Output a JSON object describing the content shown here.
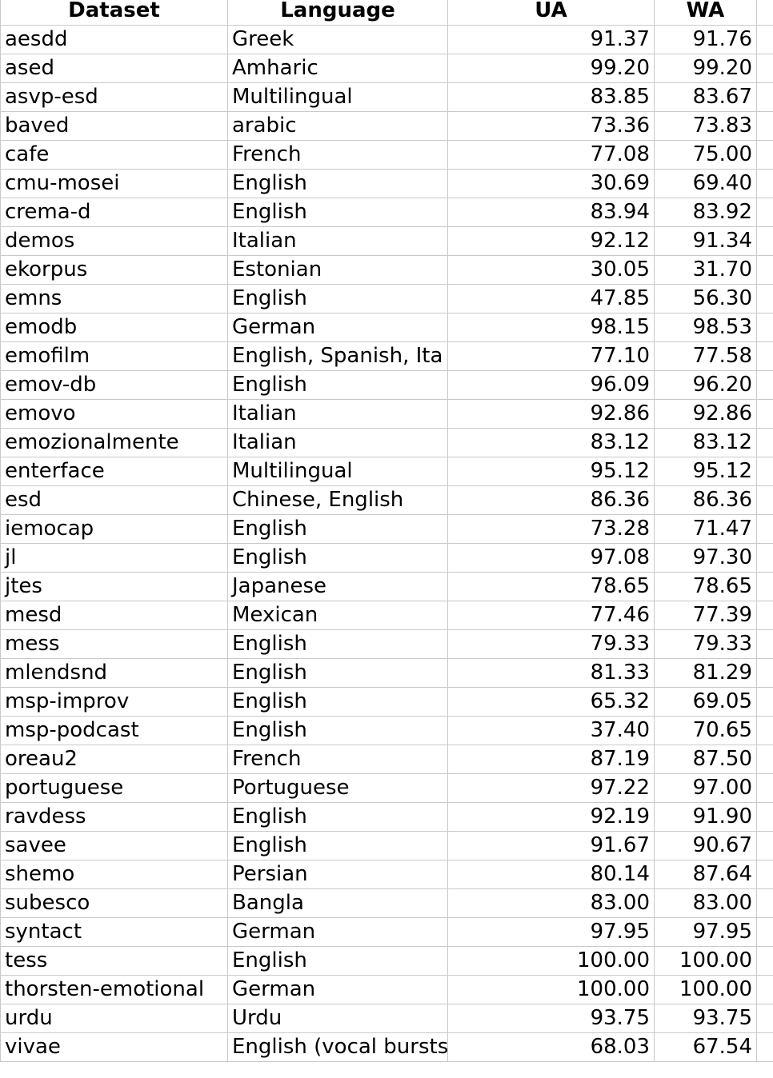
{
  "headers": {
    "dataset": "Dataset",
    "language": "Language",
    "ua": "UA",
    "wa": "WA"
  },
  "rows": [
    {
      "dataset": "aesdd",
      "language": "Greek",
      "ua": "91.37",
      "wa": "91.76"
    },
    {
      "dataset": "ased",
      "language": "Amharic",
      "ua": "99.20",
      "wa": "99.20"
    },
    {
      "dataset": "asvp-esd",
      "language": "Multilingual",
      "ua": "83.85",
      "wa": "83.67"
    },
    {
      "dataset": "baved",
      "language": "arabic",
      "ua": "73.36",
      "wa": "73.83"
    },
    {
      "dataset": "cafe",
      "language": "French",
      "ua": "77.08",
      "wa": "75.00"
    },
    {
      "dataset": "cmu-mosei",
      "language": "English",
      "ua": "30.69",
      "wa": "69.40"
    },
    {
      "dataset": "crema-d",
      "language": "English",
      "ua": "83.94",
      "wa": "83.92"
    },
    {
      "dataset": "demos",
      "language": "Italian",
      "ua": "92.12",
      "wa": "91.34"
    },
    {
      "dataset": "ekorpus",
      "language": "Estonian",
      "ua": "30.05",
      "wa": "31.70"
    },
    {
      "dataset": "emns",
      "language": "English",
      "ua": "47.85",
      "wa": "56.30"
    },
    {
      "dataset": "emodb",
      "language": "German",
      "ua": "98.15",
      "wa": "98.53"
    },
    {
      "dataset": "emofilm",
      "language": "English, Spanish, Ita",
      "ua": "77.10",
      "wa": "77.58"
    },
    {
      "dataset": "emov-db",
      "language": "English",
      "ua": "96.09",
      "wa": "96.20"
    },
    {
      "dataset": "emovo",
      "language": "Italian",
      "ua": "92.86",
      "wa": "92.86"
    },
    {
      "dataset": "emozionalmente",
      "language": "Italian",
      "ua": "83.12",
      "wa": "83.12"
    },
    {
      "dataset": "enterface",
      "language": "Multilingual",
      "ua": "95.12",
      "wa": "95.12"
    },
    {
      "dataset": "esd",
      "language": "Chinese, English",
      "ua": "86.36",
      "wa": "86.36"
    },
    {
      "dataset": "iemocap",
      "language": "English",
      "ua": "73.28",
      "wa": "71.47"
    },
    {
      "dataset": "jl",
      "language": "English",
      "ua": "97.08",
      "wa": "97.30"
    },
    {
      "dataset": "jtes",
      "language": "Japanese",
      "ua": "78.65",
      "wa": "78.65"
    },
    {
      "dataset": "mesd",
      "language": "Mexican",
      "ua": "77.46",
      "wa": "77.39"
    },
    {
      "dataset": "mess",
      "language": "English",
      "ua": "79.33",
      "wa": "79.33"
    },
    {
      "dataset": "mlendsnd",
      "language": "English",
      "ua": "81.33",
      "wa": "81.29"
    },
    {
      "dataset": "msp-improv",
      "language": "English",
      "ua": "65.32",
      "wa": "69.05"
    },
    {
      "dataset": "msp-podcast",
      "language": "English",
      "ua": "37.40",
      "wa": "70.65"
    },
    {
      "dataset": "oreau2",
      "language": "French",
      "ua": "87.19",
      "wa": "87.50"
    },
    {
      "dataset": "portuguese",
      "language": "Portuguese",
      "ua": "97.22",
      "wa": "97.00"
    },
    {
      "dataset": "ravdess",
      "language": "English",
      "ua": "92.19",
      "wa": "91.90"
    },
    {
      "dataset": "savee",
      "language": "English",
      "ua": "91.67",
      "wa": "90.67"
    },
    {
      "dataset": "shemo",
      "language": "Persian",
      "ua": "80.14",
      "wa": "87.64"
    },
    {
      "dataset": "subesco",
      "language": "Bangla",
      "ua": "83.00",
      "wa": "83.00"
    },
    {
      "dataset": "syntact",
      "language": "German",
      "ua": "97.95",
      "wa": "97.95"
    },
    {
      "dataset": "tess",
      "language": "English",
      "ua": "100.00",
      "wa": "100.00"
    },
    {
      "dataset": "thorsten-emotional",
      "language": "German",
      "ua": "100.00",
      "wa": "100.00"
    },
    {
      "dataset": "urdu",
      "language": "Urdu",
      "ua": "93.75",
      "wa": "93.75"
    },
    {
      "dataset": "vivae",
      "language": "English (vocal bursts",
      "ua": "68.03",
      "wa": "67.54"
    }
  ]
}
